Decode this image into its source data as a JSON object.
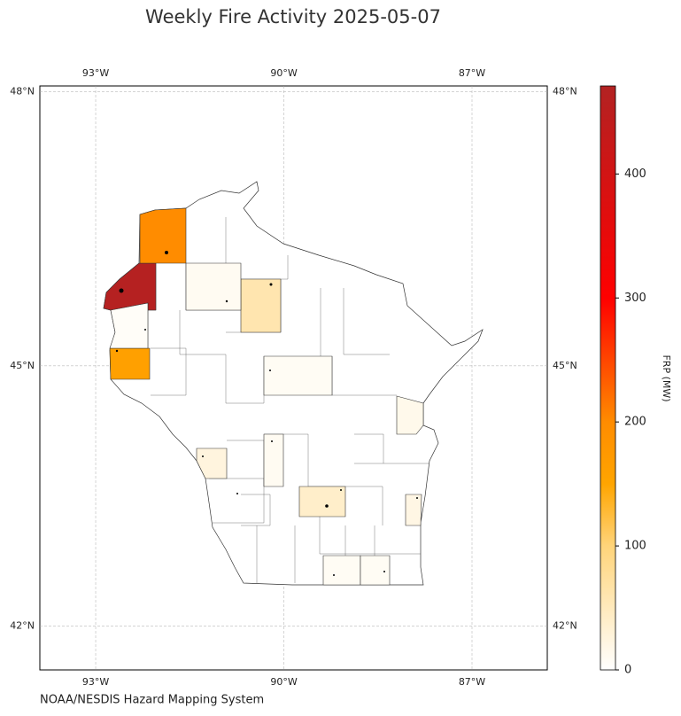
{
  "title": "Weekly Fire Activity 2025-05-07",
  "credit": "NOAA/NESDIS Hazard Mapping System",
  "map": {
    "xlim": [
      -93.89,
      -85.8
    ],
    "ylim": [
      41.48,
      48.06
    ],
    "projection": "mercator",
    "grid": true,
    "lon_ticks": [
      {
        "value": -93,
        "label": "93°W"
      },
      {
        "value": -90,
        "label": "90°W"
      },
      {
        "value": -87,
        "label": "87°W"
      }
    ],
    "lat_ticks": [
      {
        "value": 42,
        "label": "42°N"
      },
      {
        "value": 45,
        "label": "45°N"
      },
      {
        "value": 48,
        "label": "48°N"
      }
    ],
    "counties": [
      {
        "frp": 465
      },
      {
        "frp": 200
      },
      {
        "frp": 160
      },
      {
        "frp": 60
      },
      {
        "frp": 10
      },
      {
        "frp": 5
      },
      {
        "frp": 8
      },
      {
        "frp": 15
      },
      {
        "frp": 40
      },
      {
        "frp": 25
      },
      {
        "frp": 10
      },
      {
        "frp": 8
      },
      {
        "frp": 8
      },
      {
        "frp": 20
      }
    ]
  },
  "colorbar": {
    "label": "FRP (MW)",
    "lim": [
      0,
      471
    ],
    "ticks": [
      0,
      100,
      200,
      300,
      400
    ],
    "stops": [
      {
        "value": 0,
        "color": "#ffffff"
      },
      {
        "value": 100,
        "color": "#ffd47a"
      },
      {
        "value": 150,
        "color": "#ffa500"
      },
      {
        "value": 200,
        "color": "#ff8c00"
      },
      {
        "value": 300,
        "color": "#ff0000"
      },
      {
        "value": 471,
        "color": "#b22222"
      }
    ]
  }
}
